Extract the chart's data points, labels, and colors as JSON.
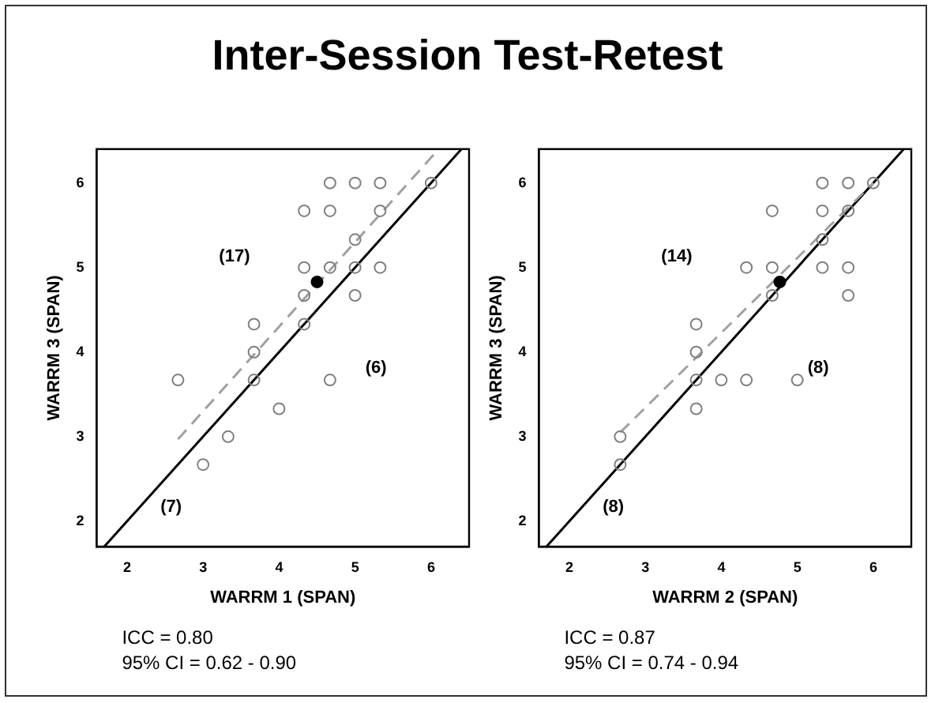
{
  "chart_data": [
    {
      "type": "scatter",
      "title": "Inter-Session Test-Retest",
      "xlabel": "WARRM 1 (SPAN)",
      "ylabel": "WARRM 3 (SPAN)",
      "xlim": [
        1.6,
        6.5
      ],
      "ylim": [
        1.7,
        6.4
      ],
      "xticks": [
        2,
        3,
        4,
        5,
        6
      ],
      "yticks": [
        2,
        3,
        4,
        5,
        6
      ],
      "grid": false,
      "legend": false,
      "series": [
        {
          "type": "scatter",
          "color": "#808080",
          "marker": "circle",
          "x": [
            2.67,
            3,
            3.33,
            3.67,
            3.67,
            3.67,
            4,
            4.33,
            4.33,
            4.33,
            4.33,
            4.67,
            4.67,
            4.67,
            4.67,
            5,
            5,
            5,
            5,
            5.33,
            5.33,
            5.33,
            6
          ],
          "values": [
            3.67,
            2.67,
            3,
            4.33,
            4,
            3.67,
            3.33,
            5.67,
            5,
            4.67,
            4.33,
            6,
            5.67,
            5,
            3.67,
            6,
            5.33,
            5,
            4.67,
            6,
            5.67,
            5,
            6
          ]
        },
        {
          "type": "scatter",
          "color": "#000000",
          "marker": "circle",
          "x": [
            4.5
          ],
          "values": [
            4.83
          ]
        },
        {
          "type": "line",
          "color": "#a0a0a0",
          "line_style": "dashed",
          "marker": "none",
          "x": [
            2.67,
            6.1
          ],
          "values": [
            2.97,
            6.4
          ]
        },
        {
          "type": "line",
          "color": "#000000",
          "line_style": "solid",
          "marker": "none",
          "x": [
            1.7,
            6.4
          ],
          "values": [
            1.7,
            6.4
          ]
        }
      ],
      "annotations": [
        "(17)",
        "(6)",
        "(7)",
        "ICC = 0.80",
        "95% CI = 0.62 - 0.90"
      ]
    },
    {
      "type": "scatter",
      "xlabel": "WARRM 2 (SPAN)",
      "ylabel": "WARRM 3 (SPAN)",
      "xlim": [
        1.6,
        6.5
      ],
      "ylim": [
        1.7,
        6.4
      ],
      "xticks": [
        2,
        3,
        4,
        5,
        6
      ],
      "yticks": [
        2,
        3,
        4,
        5,
        6
      ],
      "grid": false,
      "legend": false,
      "series": [
        {
          "type": "scatter",
          "color": "#808080",
          "marker": "circle",
          "x": [
            2.67,
            2.67,
            3.67,
            3.67,
            3.67,
            3.67,
            4,
            4.33,
            4.33,
            4.67,
            4.67,
            4.67,
            5,
            5.33,
            5.33,
            5.33,
            5.33,
            5.67,
            5.67,
            5.67,
            5.67,
            6
          ],
          "values": [
            3,
            2.67,
            4.33,
            4,
            3.67,
            3.33,
            3.67,
            5,
            3.67,
            5.67,
            5,
            4.67,
            3.67,
            6,
            5.67,
            5.33,
            5,
            6,
            5.67,
            5,
            4.67,
            6
          ]
        },
        {
          "type": "scatter",
          "color": "#000000",
          "marker": "circle",
          "x": [
            4.77
          ],
          "values": [
            4.83
          ]
        },
        {
          "type": "line",
          "color": "#a0a0a0",
          "line_style": "dashed",
          "marker": "none",
          "x": [
            2.67,
            6
          ],
          "values": [
            3.05,
            6
          ]
        },
        {
          "type": "line",
          "color": "#000000",
          "line_style": "solid",
          "marker": "none",
          "x": [
            1.7,
            6.4
          ],
          "values": [
            1.7,
            6.4
          ]
        }
      ],
      "annotations": [
        "(14)",
        "(8)",
        "(8)",
        "ICC = 0.87",
        "95% CI = 0.74 - 0.94"
      ]
    }
  ]
}
